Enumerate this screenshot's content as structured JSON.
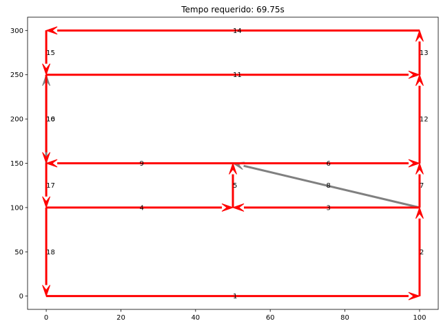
{
  "chart_data": {
    "type": "graph",
    "title": "Tempo requerido: 69.75s",
    "xlim": [
      -5,
      105
    ],
    "ylim": [
      -15,
      315
    ],
    "xticks": [
      0,
      20,
      40,
      60,
      80,
      100
    ],
    "yticks": [
      0,
      50,
      100,
      150,
      200,
      250,
      300
    ],
    "grid": false,
    "colors": {
      "path": "#ff0000",
      "unused": "#808080",
      "axis": "#000000",
      "text": "#000000"
    },
    "edges": [
      {
        "label": "1",
        "from": [
          0,
          0
        ],
        "to": [
          100,
          0
        ],
        "color": "#ff0000"
      },
      {
        "label": "2",
        "from": [
          100,
          0
        ],
        "to": [
          100,
          100
        ],
        "color": "#ff0000"
      },
      {
        "label": "3",
        "from": [
          100,
          100
        ],
        "to": [
          50,
          100
        ],
        "color": "#ff0000"
      },
      {
        "label": "4",
        "from": [
          0,
          100
        ],
        "to": [
          50,
          100
        ],
        "color": "#ff0000"
      },
      {
        "label": "5",
        "from": [
          50,
          100
        ],
        "to": [
          50,
          150
        ],
        "color": "#ff0000"
      },
      {
        "label": "6",
        "from": [
          50,
          150
        ],
        "to": [
          100,
          150
        ],
        "color": "#ff0000"
      },
      {
        "label": "7",
        "from": [
          100,
          100
        ],
        "to": [
          100,
          150
        ],
        "color": "#ff0000"
      },
      {
        "label": "8",
        "from": [
          100,
          100
        ],
        "to": [
          50,
          150
        ],
        "color": "#808080"
      },
      {
        "label": "9",
        "from": [
          50,
          150
        ],
        "to": [
          0,
          150
        ],
        "color": "#ff0000"
      },
      {
        "label": "10",
        "from": [
          0,
          150
        ],
        "to": [
          0,
          250
        ],
        "color": "#808080"
      },
      {
        "label": "11",
        "from": [
          0,
          250
        ],
        "to": [
          100,
          250
        ],
        "color": "#ff0000"
      },
      {
        "label": "12",
        "from": [
          100,
          150
        ],
        "to": [
          100,
          250
        ],
        "color": "#ff0000"
      },
      {
        "label": "13",
        "from": [
          100,
          250
        ],
        "to": [
          100,
          300
        ],
        "color": "#ff0000"
      },
      {
        "label": "14",
        "from": [
          100,
          300
        ],
        "to": [
          0,
          300
        ],
        "color": "#ff0000"
      },
      {
        "label": "15",
        "from": [
          0,
          300
        ],
        "to": [
          0,
          250
        ],
        "color": "#ff0000"
      },
      {
        "label": "16",
        "from": [
          0,
          250
        ],
        "to": [
          0,
          150
        ],
        "color": "#ff0000"
      },
      {
        "label": "17",
        "from": [
          0,
          150
        ],
        "to": [
          0,
          100
        ],
        "color": "#ff0000"
      },
      {
        "label": "18",
        "from": [
          0,
          100
        ],
        "to": [
          0,
          0
        ],
        "color": "#ff0000"
      }
    ]
  }
}
